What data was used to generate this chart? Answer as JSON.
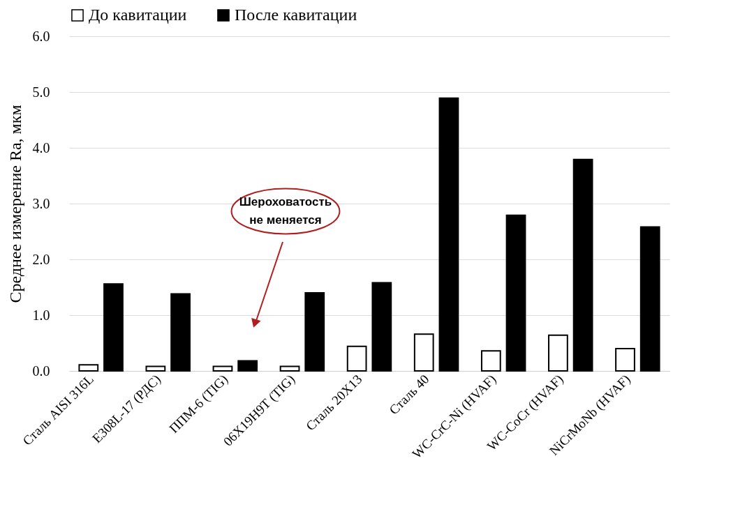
{
  "chart_data": {
    "type": "bar",
    "ylabel": "Среднее измерение Ra, мкм",
    "categories": [
      "Сталь AISI 316L",
      "E308L-17 (РДС)",
      "ППМ-6 (TIG)",
      "06Х19Н9Т (TIG)",
      "Сталь 20Х13",
      "Сталь 40",
      "WC-CrC-Ni (HVAF)",
      "WC-CoCr (HVAF)",
      "NiCrMoNb (HVAF)"
    ],
    "series": [
      {
        "name": "До кавитации",
        "color": "#ffffff",
        "values": [
          0.11,
          0.08,
          0.08,
          0.08,
          0.44,
          0.66,
          0.36,
          0.64,
          0.4
        ]
      },
      {
        "name": "После кавитации",
        "color": "#000000",
        "values": [
          1.56,
          1.38,
          0.18,
          1.4,
          1.58,
          4.89,
          2.79,
          3.79,
          2.58
        ]
      }
    ],
    "ylim": [
      0,
      6
    ],
    "yticks": [
      {
        "value": 0,
        "label": "0.0"
      },
      {
        "value": 1,
        "label": "1.0"
      },
      {
        "value": 2,
        "label": "2.0"
      },
      {
        "value": 3,
        "label": "3.0"
      },
      {
        "value": 4,
        "label": "4.0"
      },
      {
        "value": 5,
        "label": "5.0"
      },
      {
        "value": 6,
        "label": "6.0"
      }
    ],
    "grid": "y",
    "legend": "top",
    "annotations": [
      "Шероховатость\nне меняется"
    ]
  }
}
